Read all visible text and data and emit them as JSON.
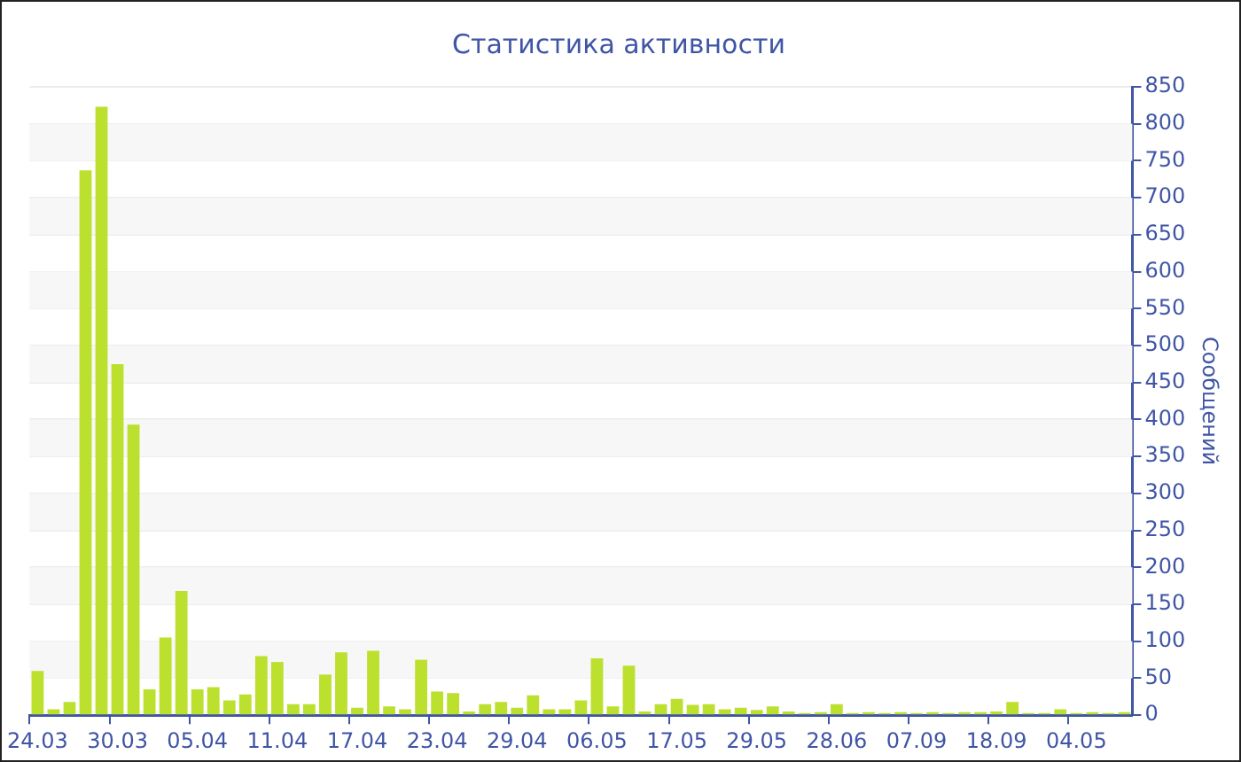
{
  "chart_data": {
    "type": "bar",
    "title": "Статистика активности",
    "ylabel": "Сообщений",
    "categories": [
      "24.03",
      null,
      null,
      null,
      null,
      "30.03",
      null,
      null,
      null,
      null,
      "05.04",
      null,
      null,
      null,
      null,
      "11.04",
      null,
      null,
      null,
      null,
      "17.04",
      null,
      null,
      null,
      null,
      "23.04",
      null,
      null,
      null,
      null,
      "29.04",
      null,
      null,
      null,
      null,
      "06.05",
      null,
      null,
      null,
      null,
      "17.05",
      null,
      null,
      null,
      null,
      "29.05",
      null,
      null,
      null,
      null,
      "28.06",
      null,
      null,
      null,
      null,
      "07.09",
      null,
      null,
      null,
      null,
      "18.09",
      null,
      null,
      null,
      null,
      "04.05",
      null,
      null,
      null
    ],
    "values": [
      60,
      8,
      18,
      737,
      823,
      475,
      393,
      35,
      105,
      168,
      35,
      38,
      20,
      28,
      80,
      72,
      15,
      15,
      55,
      85,
      10,
      87,
      12,
      8,
      75,
      32,
      30,
      5,
      15,
      18,
      10,
      27,
      8,
      8,
      20,
      77,
      12,
      67,
      5,
      15,
      22,
      14,
      15,
      8,
      10,
      7,
      12,
      5,
      3,
      4,
      15,
      3,
      4,
      3,
      4,
      3,
      4,
      3,
      4,
      4,
      5,
      18,
      3,
      3,
      8,
      3,
      4,
      3,
      4
    ],
    "color": "#bbe02e",
    "ylim": [
      0,
      850
    ],
    "yticks": [
      0,
      50,
      100,
      150,
      200,
      250,
      300,
      350,
      400,
      450,
      500,
      550,
      600,
      650,
      700,
      750,
      800,
      850
    ],
    "grid": true
  }
}
